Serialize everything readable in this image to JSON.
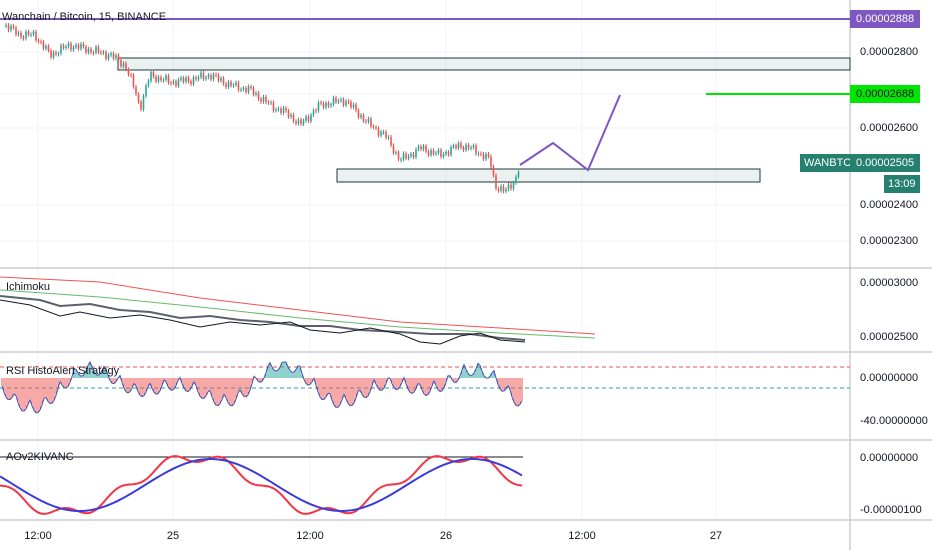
{
  "header": {
    "title": "Wanchain / Bitcoin, 15, BINANCE"
  },
  "price_axis": {
    "labels": [
      "0.00002800",
      "0.00002600",
      "0.00002400",
      "0.00002300"
    ]
  },
  "tags": {
    "top_line": "0.00002888",
    "target_line": "0.00002688",
    "symbol": "WANBTC",
    "last_price": "0.00002505",
    "countdown": "13:09"
  },
  "panes": [
    {
      "name": "Ichimoku",
      "labels": [
        "0.00003000",
        "0.00002500"
      ]
    },
    {
      "name": "RSI HistoAlert Strategy",
      "labels": [
        "0.00000000",
        "-40.00000000"
      ]
    },
    {
      "name": "AOv2KIVANC",
      "labels": [
        "0.00000000",
        "-0.00000100"
      ]
    }
  ],
  "time_axis": {
    "labels": [
      "12:00",
      "25",
      "12:00",
      "26",
      "12:00",
      "27"
    ]
  }
}
